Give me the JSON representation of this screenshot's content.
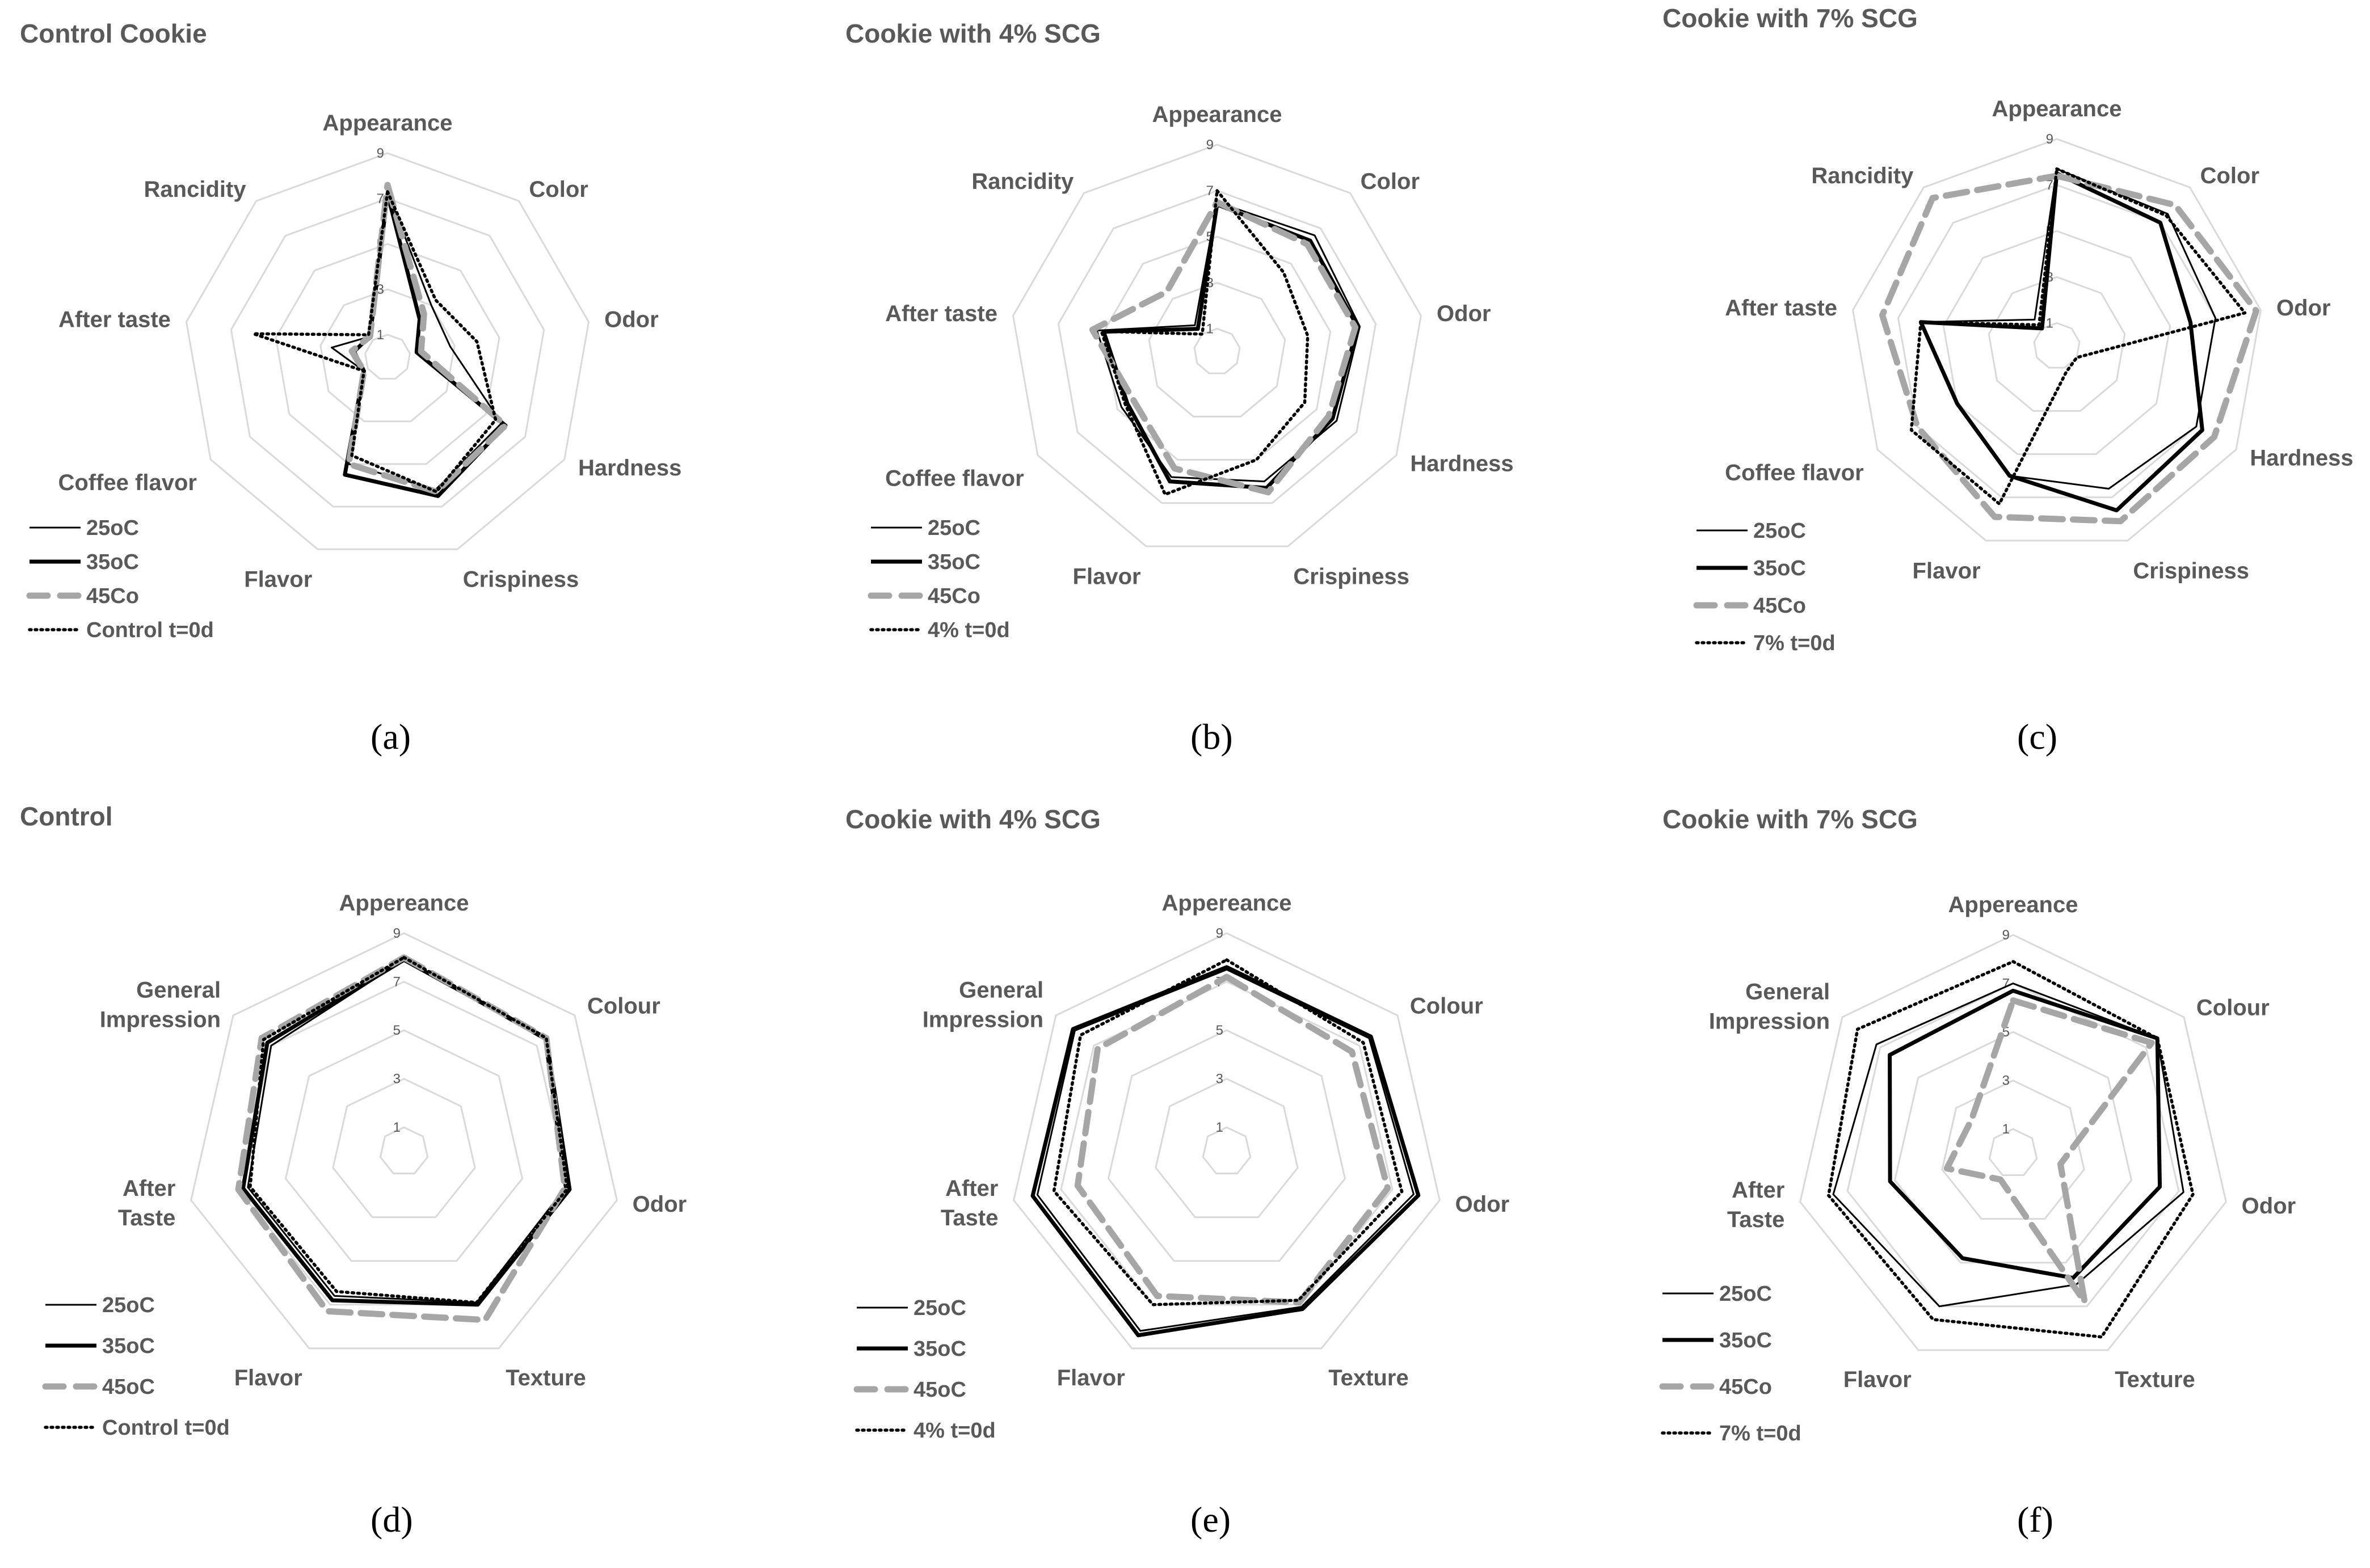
{
  "colors": {
    "grid": "#d9d9d9",
    "label": "#595959",
    "series": [
      "#000000",
      "#000000",
      "#a6a6a6",
      "#000000"
    ]
  },
  "series_styles": [
    "thin-solid",
    "thick-solid",
    "thick-dashed-gray",
    "dotted"
  ],
  "chart_data": [
    {
      "type": "radar",
      "caption": "(a)",
      "title": "Control Cookie",
      "axes": [
        "Appearance",
        "Color",
        "Odor",
        "Hardness",
        "Crispiness",
        "Flavor",
        "Coffee flavor",
        "After taste",
        "Rancidity"
      ],
      "range": [
        0,
        9
      ],
      "ticks": [
        "1",
        "3",
        "5",
        "7",
        "9"
      ],
      "grid": true,
      "legend_position": "bottom-left",
      "series": [
        {
          "name": "25oC",
          "values": [
            7.3,
            3.0,
            2.8,
            5.8,
            6.2,
            5.0,
            1.2,
            2.5,
            1.2
          ]
        },
        {
          "name": "35oC",
          "values": [
            7.2,
            2.2,
            1.3,
            6.0,
            6.5,
            5.5,
            1.2,
            1.5,
            1.2
          ]
        },
        {
          "name": "45Co",
          "values": [
            7.6,
            2.5,
            1.5,
            6.0,
            6.3,
            5.0,
            1.2,
            1.6,
            1.2
          ]
        },
        {
          "name": "Control t=0d",
          "values": [
            7.3,
            3.3,
            4.0,
            5.5,
            6.3,
            4.6,
            1.2,
            6.0,
            1.3
          ]
        }
      ]
    },
    {
      "type": "radar",
      "caption": "(b)",
      "title": "Cookie with 4% SCG",
      "axes": [
        "Appearance",
        "Color",
        "Odor",
        "Hardness",
        "Crispiness",
        "Flavor",
        "Coffee flavor",
        "After taste",
        "Rancidity"
      ],
      "range": [
        0,
        9
      ],
      "ticks": [
        "1",
        "3",
        "5",
        "7",
        "9"
      ],
      "grid": true,
      "legend_position": "bottom-left",
      "series": [
        {
          "name": "25oC",
          "values": [
            6.5,
            6.6,
            6.3,
            6.0,
            6.0,
            5.8,
            4.8,
            5.3,
            1.5
          ]
        },
        {
          "name": "35oC",
          "values": [
            6.4,
            6.3,
            6.2,
            5.8,
            6.3,
            6.0,
            4.5,
            5.0,
            1.3
          ]
        },
        {
          "name": "45Co",
          "values": [
            6.5,
            6.1,
            6.1,
            5.6,
            6.5,
            5.4,
            4.2,
            5.5,
            3.4
          ]
        },
        {
          "name": "4% t=0d",
          "values": [
            7.0,
            4.5,
            4.0,
            4.4,
            5.0,
            6.6,
            4.6,
            5.1,
            1.0
          ]
        }
      ]
    },
    {
      "type": "radar",
      "caption": "(c)",
      "title": "Cookie with 7% SCG",
      "axes": [
        "Appearance",
        "Color",
        "Odor",
        "Hardness",
        "Crispiness",
        "Flavor",
        "Coffee flavor",
        "After taste",
        "Rancidity"
      ],
      "range": [
        0,
        9
      ],
      "ticks": [
        "1",
        "3",
        "5",
        "7",
        "9"
      ],
      "grid": true,
      "legend_position": "bottom-left",
      "series": [
        {
          "name": "25oC",
          "values": [
            7.7,
            7.5,
            7.0,
            7.0,
            6.6,
            6.0,
            5.0,
            6.0,
            1.5
          ]
        },
        {
          "name": "35oC",
          "values": [
            7.5,
            7.0,
            5.9,
            7.3,
            7.6,
            6.0,
            5.0,
            6.0,
            1.0
          ]
        },
        {
          "name": "45Co",
          "values": [
            7.4,
            8.0,
            8.8,
            7.9,
            8.1,
            7.9,
            7.0,
            7.7,
            8.4
          ]
        },
        {
          "name": "7% t=0d",
          "values": [
            7.7,
            7.4,
            8.3,
            1.0,
            1.2,
            7.3,
            7.3,
            6.0,
            1.2
          ]
        }
      ]
    },
    {
      "type": "radar",
      "caption": "(d)",
      "title": "Control",
      "axes": [
        "Appereance",
        "Colour",
        "Odor",
        "Texture",
        "Flavor",
        "After Taste",
        "General Impression"
      ],
      "range": [
        0,
        9
      ],
      "ticks": [
        "1",
        "3",
        "5",
        "7",
        "9"
      ],
      "grid": true,
      "legend_position": "bottom-left",
      "series": [
        {
          "name": "25oC",
          "values": [
            7.9,
            7.4,
            6.8,
            6.9,
            6.6,
            6.6,
            7.0
          ]
        },
        {
          "name": "35oC",
          "values": [
            7.9,
            7.5,
            7.0,
            7.0,
            6.8,
            6.8,
            7.2
          ]
        },
        {
          "name": "45oC",
          "values": [
            8.0,
            7.5,
            6.8,
            7.7,
            7.3,
            7.0,
            7.5
          ]
        },
        {
          "name": "Control t=0d",
          "values": [
            8.0,
            7.5,
            6.9,
            6.9,
            6.4,
            6.5,
            7.4
          ]
        }
      ]
    },
    {
      "type": "radar",
      "caption": "(e)",
      "title": "Cookie with 4% SCG",
      "axes": [
        "Appereance",
        "Colour",
        "Odor",
        "Texture",
        "Flavor",
        "After Taste",
        "General Impression"
      ],
      "range": [
        0,
        9
      ],
      "ticks": [
        "1",
        "3",
        "5",
        "7",
        "9"
      ],
      "grid": true,
      "legend_position": "bottom-left",
      "series": [
        {
          "name": "25oC",
          "values": [
            7.5,
            7.5,
            7.9,
            7.1,
            8.2,
            8.0,
            8.0
          ]
        },
        {
          "name": "35oC",
          "values": [
            7.6,
            7.6,
            8.1,
            7.2,
            8.4,
            8.2,
            8.1
          ]
        },
        {
          "name": "45oC",
          "values": [
            7.2,
            6.6,
            6.8,
            6.9,
            6.6,
            6.3,
            6.8
          ]
        },
        {
          "name": "4% t=0d",
          "values": [
            7.9,
            7.2,
            7.4,
            6.8,
            7.0,
            7.3,
            7.7
          ]
        }
      ]
    },
    {
      "type": "radar",
      "caption": "(f)",
      "title": "Cookie with 7% SCG",
      "axes": [
        "Appereance",
        "Colour",
        "Odor",
        "Texture",
        "Flavor",
        "After Taste",
        "General Impression"
      ],
      "range": [
        0,
        9
      ],
      "ticks": [
        "1",
        "3",
        "5",
        "7",
        "9"
      ],
      "grid": true,
      "legend_position": "bottom-left",
      "series": [
        {
          "name": "25oC",
          "values": [
            7.0,
            7.6,
            7.2,
            6.0,
            7.0,
            7.6,
            7.2
          ]
        },
        {
          "name": "35oC",
          "values": [
            6.7,
            7.6,
            6.2,
            5.7,
            4.8,
            5.2,
            6.5
          ]
        },
        {
          "name": "45Co",
          "values": [
            6.3,
            7.3,
            2.0,
            6.8,
            1.2,
            2.8,
            2.2
          ]
        },
        {
          "name": "7% t=0d",
          "values": [
            7.9,
            7.6,
            7.6,
            8.4,
            7.6,
            7.8,
            8.2
          ]
        }
      ]
    }
  ]
}
